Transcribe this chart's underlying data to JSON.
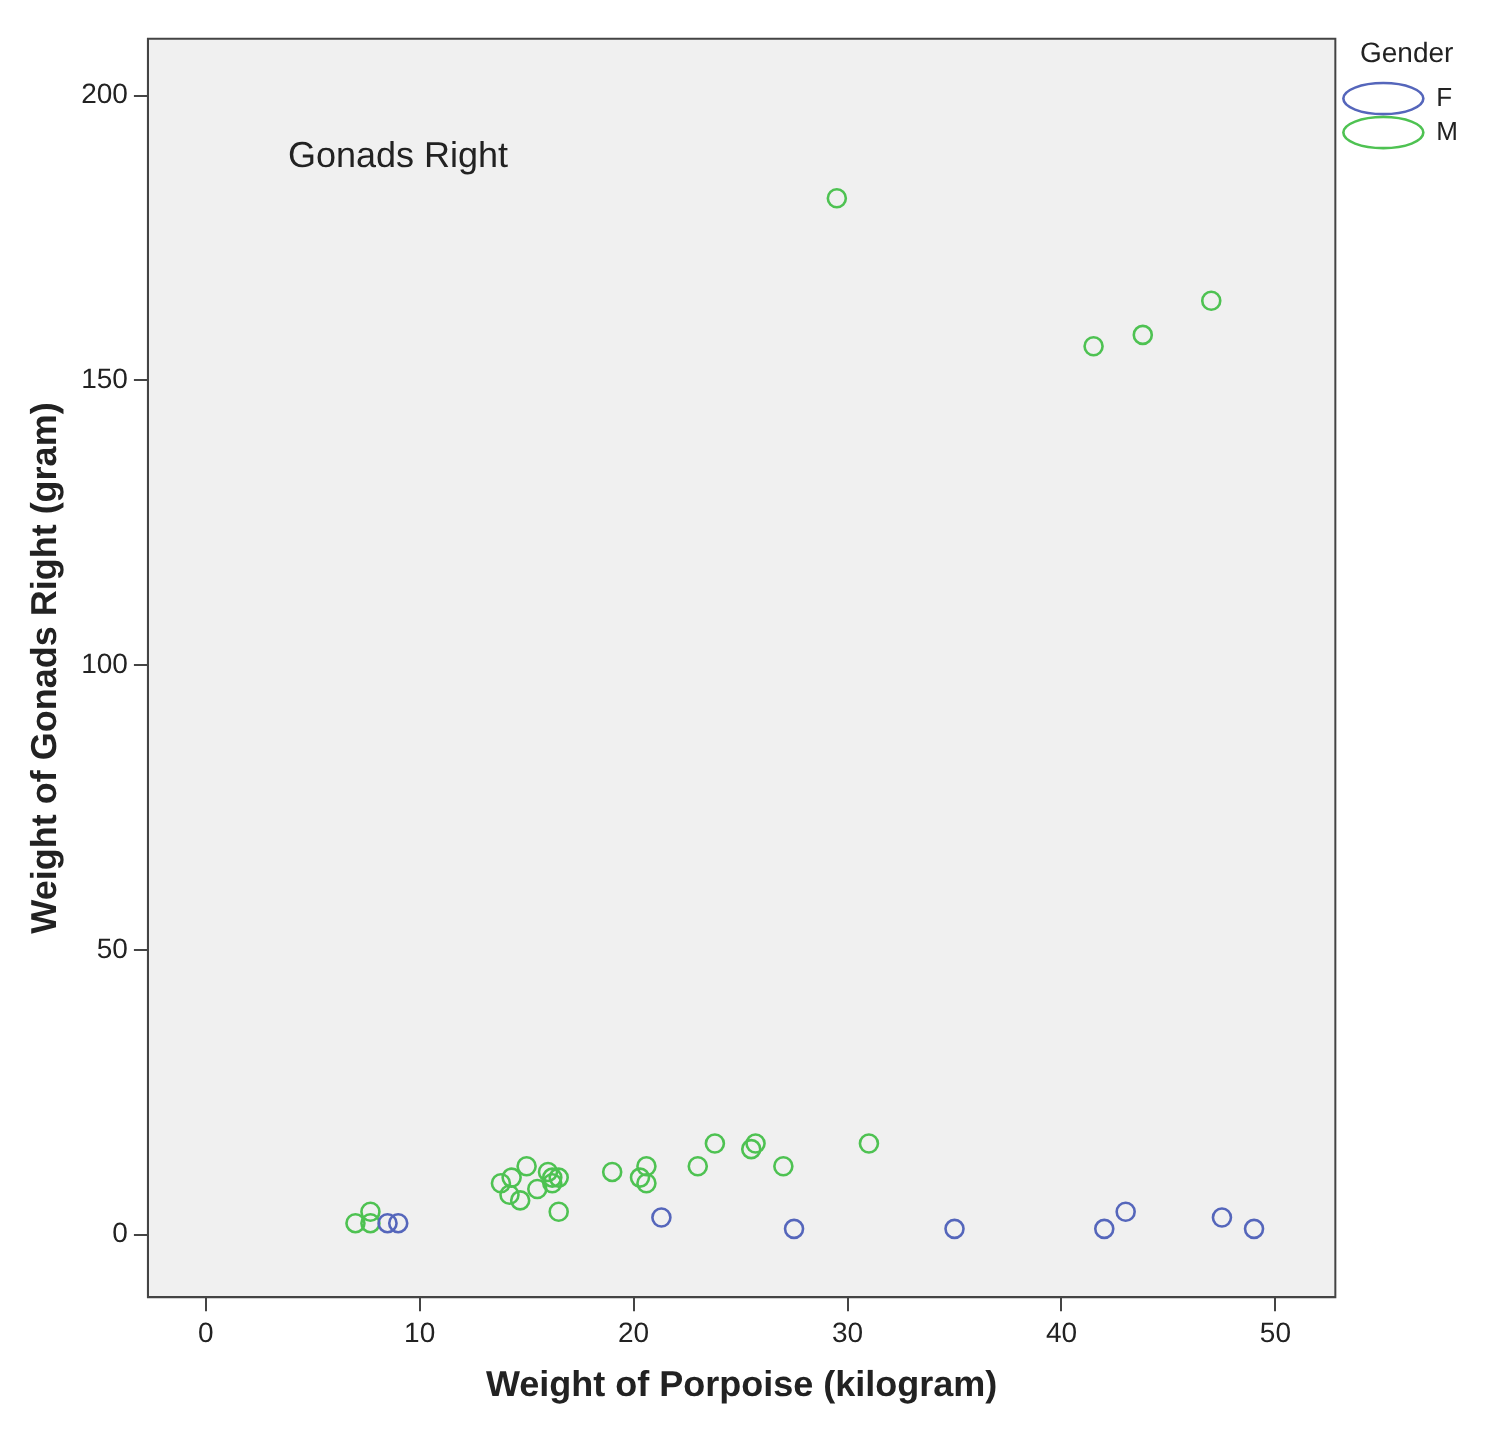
{
  "chart_data": {
    "type": "scatter",
    "xlabel": "Weight of Porpoise (kilogram)",
    "ylabel": "Weight of Gonads Right (gram)",
    "legend_title": "Gender",
    "annotations": [
      "Gonads Right"
    ],
    "xlim": [
      -2.7,
      52.8
    ],
    "xticks": [
      0,
      10,
      20,
      30,
      40,
      50
    ],
    "ylim": [
      -11,
      210
    ],
    "yticks": [
      0,
      50,
      100,
      150,
      200
    ],
    "grid": false,
    "legend": "top right",
    "marker": "circle",
    "series": [
      {
        "name": "F",
        "color": "#5566bb",
        "x": [
          8.5,
          9,
          21.3,
          27.5,
          35,
          42,
          43,
          47.5,
          49
        ],
        "values": [
          2,
          2,
          3,
          1,
          1,
          1,
          4,
          3,
          1
        ]
      },
      {
        "name": "M",
        "color": "#4ec252",
        "x": [
          7,
          7.7,
          7.7,
          13.8,
          14.2,
          14.3,
          14.7,
          15,
          15.5,
          16,
          16.2,
          16.5,
          16.5,
          16.2,
          19,
          20.3,
          20.6,
          20.6,
          23,
          23.8,
          25.5,
          25.7,
          27,
          31,
          29.5,
          41.5,
          43.8,
          47
        ],
        "values": [
          2,
          4,
          2,
          9,
          7,
          10,
          6,
          12,
          8,
          11,
          9,
          10,
          4,
          10,
          11,
          10,
          12,
          9,
          12,
          16,
          15,
          16,
          12,
          16,
          182,
          156,
          158,
          164
        ]
      }
    ]
  }
}
